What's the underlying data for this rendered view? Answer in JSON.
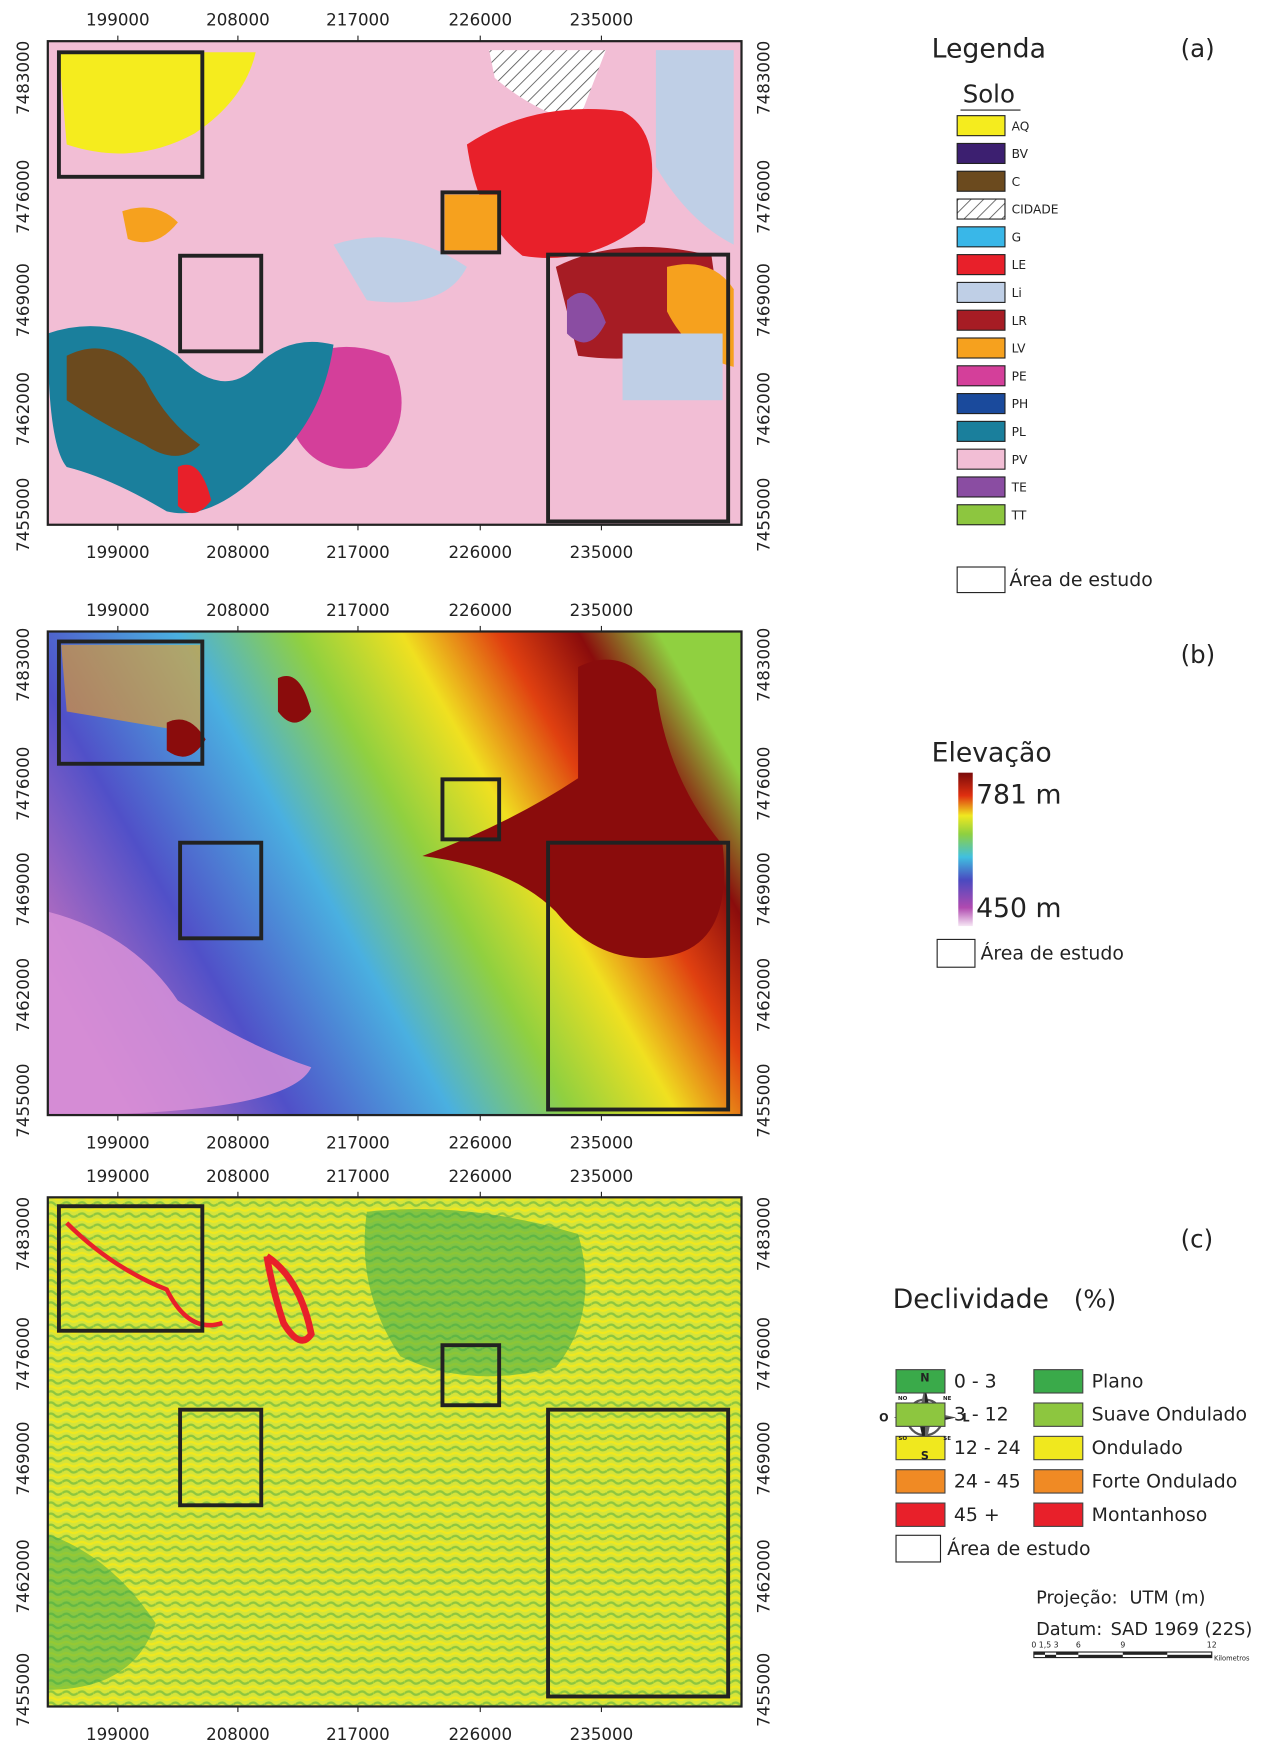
{
  "x_ticks": [
    "199000",
    "208000",
    "217000",
    "226000",
    "235000"
  ],
  "y_ticks": [
    "7483000",
    "7476000",
    "7469000",
    "7462000",
    "7455000"
  ],
  "panel_a": {
    "label": "(a)",
    "legend_title": "Legenda",
    "subtitle": "Solo",
    "items": [
      {
        "label": "AQ",
        "color": "#f5ec1e"
      },
      {
        "label": "BV",
        "color": "#3c1f70"
      },
      {
        "label": "C",
        "color": "#6b4a1e"
      },
      {
        "label": "CIDADE",
        "color": "#ffffff",
        "hatched": true
      },
      {
        "label": "G",
        "color": "#39b7e8"
      },
      {
        "label": "LE",
        "color": "#e8202a"
      },
      {
        "label": "Li",
        "color": "#bfcfe6"
      },
      {
        "label": "LR",
        "color": "#a61c24"
      },
      {
        "label": "LV",
        "color": "#f6a11e"
      },
      {
        "label": "PE",
        "color": "#d43f9a"
      },
      {
        "label": "PH",
        "color": "#1a4a9c"
      },
      {
        "label": "PL",
        "color": "#1a7f9c"
      },
      {
        "label": "PV",
        "color": "#f2bed5"
      },
      {
        "label": "TE",
        "color": "#8a4da2"
      },
      {
        "label": "TT",
        "color": "#8dc63f"
      }
    ],
    "study_area": "Área de estudo"
  },
  "panel_b": {
    "label": "(b)",
    "legend_title": "Elevação",
    "max_label": "781 m",
    "min_label": "450 m",
    "study_area": "Área de estudo"
  },
  "panel_c": {
    "label": "(c)",
    "legend_title": "Declividade",
    "unit": "(%)",
    "items": [
      {
        "range": "0 - 3",
        "name": "Plano",
        "color": "#3aaa4a"
      },
      {
        "range": "3 - 12",
        "name": "Suave Ondulado",
        "color": "#8dc63f"
      },
      {
        "range": "12 - 24",
        "name": "Ondulado",
        "color": "#f0e81e"
      },
      {
        "range": "24 - 45",
        "name": "Forte Ondulado",
        "color": "#f08a24"
      },
      {
        "range": "45 +",
        "name": "Montanhoso",
        "color": "#e8202a"
      }
    ],
    "study_area": "Área de estudo"
  },
  "footer": {
    "compass": {
      "n": "N",
      "s": "S",
      "e": "L",
      "w": "O",
      "ne": "NE",
      "nw": "NO",
      "se": "SE",
      "sw": "SO"
    },
    "projection_label": "Projeção:",
    "projection": "UTM (m)",
    "datum_label": "Datum:",
    "datum": "SAD 1969 (22S)",
    "scale_ticks": [
      "0",
      "1,5",
      "3",
      "6",
      "9",
      "12"
    ],
    "scale_unit": "Kilometros"
  }
}
